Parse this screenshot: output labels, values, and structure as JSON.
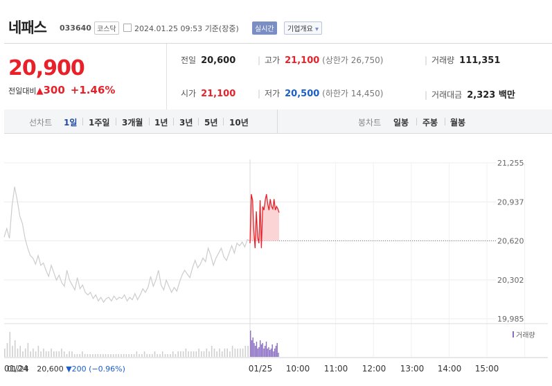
{
  "header": {
    "name": "네패스",
    "code": "033640",
    "market": "코스닥",
    "datetime": "2024.01.25 09:53",
    "basis": "기준(장중)",
    "realtime": "실시간",
    "company_info": "기업개요",
    "dropdown_icon": "caret-down-icon"
  },
  "summary": {
    "price": "20,900",
    "change_label": "전일대비",
    "change_amount": "300",
    "change_pct": "+1.46%",
    "prev_label": "전일",
    "prev_value": "20,600",
    "open_label": "시가",
    "open_value": "21,100",
    "high_label": "고가",
    "high_value": "21,100",
    "upper_limit": "(상한가 26,750)",
    "low_label": "저가",
    "low_value": "20,500",
    "lower_limit": "(하한가 14,450)",
    "volume_label": "거래량",
    "volume_value": "111,351",
    "amount_label": "거래대금",
    "amount_value": "2,323 백만",
    "colors": {
      "up": "#e8202a",
      "down": "#1a5ec9"
    }
  },
  "tabs": {
    "line_label": "선차트",
    "line_items": [
      "1일",
      "1주일",
      "3개월",
      "1년",
      "3년",
      "5년",
      "10년"
    ],
    "line_active": "1일",
    "candle_label": "봉차트",
    "candle_items": [
      "일봉",
      "주봉",
      "월봉"
    ]
  },
  "prev_day_summary": {
    "date": "01/24",
    "close": "20,600",
    "change": "▼200",
    "pct": "(−0.96%)"
  },
  "chart_data": {
    "type": "line",
    "y_ticks": [
      "21,255",
      "20,937",
      "20,620",
      "20,302",
      "19,985"
    ],
    "y_tick_values": [
      21255,
      20937,
      20620,
      20302,
      19985
    ],
    "ylim": [
      19985,
      21255
    ],
    "baseline": 20620,
    "x_ticks": [
      "01/24",
      "01/25",
      "10:00",
      "11:00",
      "12:00",
      "13:00",
      "14:00",
      "15:00"
    ],
    "volume_legend": "거래량",
    "colors": {
      "prev_line": "#cccccc",
      "today_line": "#e8202a",
      "today_fill": "#fbd5d5",
      "prev_vol": "#cfcfcf",
      "today_vol": "#8a6cc4"
    },
    "prev_day_series": [
      20650,
      20720,
      20640,
      20900,
      21060,
      20950,
      20820,
      20760,
      20640,
      20560,
      20500,
      20480,
      20430,
      20500,
      20420,
      20440,
      20380,
      20330,
      20420,
      20360,
      20300,
      20340,
      20280,
      20250,
      20380,
      20300,
      20260,
      20220,
      20320,
      20230,
      20260,
      20200,
      20180,
      20200,
      20150,
      20180,
      20130,
      20160,
      20120,
      20150,
      20160,
      20130,
      20170,
      20140,
      20160,
      20150,
      20180,
      20130,
      20160,
      20140,
      20190,
      20140,
      20180,
      20230,
      20200,
      20240,
      20330,
      20250,
      20300,
      20380,
      20260,
      20220,
      20300,
      20250,
      20200,
      20240,
      20210,
      20280,
      20340,
      20380,
      20350,
      20320,
      20400,
      20460,
      20400,
      20430,
      20480,
      20450,
      20560,
      20500,
      20420,
      20480,
      20520,
      20560,
      20490,
      20460,
      20520,
      20580,
      20520,
      20600,
      20580,
      20610,
      20570,
      20630,
      20620
    ],
    "today_series": [
      20600,
      21000,
      20950,
      20700,
      20560,
      20860,
      20650,
      20600,
      20950,
      20560,
      20900,
      20870,
      20950,
      21000,
      20920,
      20870,
      20960,
      20900,
      20880,
      20960,
      20870,
      20900,
      20880,
      20850
    ],
    "prev_day_volume": [
      0.3,
      0.5,
      0.9,
      0.4,
      0.6,
      0.3,
      0.4,
      0.2,
      0.3,
      0.5,
      0.2,
      0.3,
      0.2,
      0.4,
      0.2,
      0.3,
      0.2,
      0.2,
      0.3,
      0.2,
      0.2,
      0.2,
      0.3,
      0.2,
      0.1,
      0.2,
      0.2,
      0.1,
      0.1,
      0.1,
      0.2,
      0.1,
      0.1,
      0.1,
      0.1,
      0.1,
      0.1,
      0.1,
      0.1,
      0.1,
      0.1,
      0.1,
      0.1,
      0.1,
      0.1,
      0.1,
      0.1,
      0.1,
      0.1,
      0.1,
      0.1,
      0.2,
      0.1,
      0.1,
      0.2,
      0.1,
      0.1,
      0.1,
      0.2,
      0.1,
      0.1,
      0.2,
      0.1,
      0.1,
      0.1,
      0.2,
      0.1,
      0.2,
      0.2,
      0.2,
      0.3,
      0.2,
      0.2,
      0.2,
      0.2,
      0.3,
      0.2,
      0.2,
      0.3,
      0.2,
      0.4,
      0.3,
      0.2,
      0.3,
      0.2,
      0.3,
      0.3,
      0.2,
      0.4,
      0.3,
      0.3,
      0.3,
      0.3,
      0.4,
      0.4
    ],
    "today_volume": [
      0.95,
      0.6,
      0.7,
      0.5,
      0.4,
      0.55,
      0.3,
      0.35,
      0.6,
      0.45,
      0.5,
      0.3,
      0.4,
      0.55,
      0.3,
      0.35,
      0.25,
      0.3,
      0.45,
      0.2,
      0.3,
      0.4,
      0.5,
      0.15
    ]
  }
}
